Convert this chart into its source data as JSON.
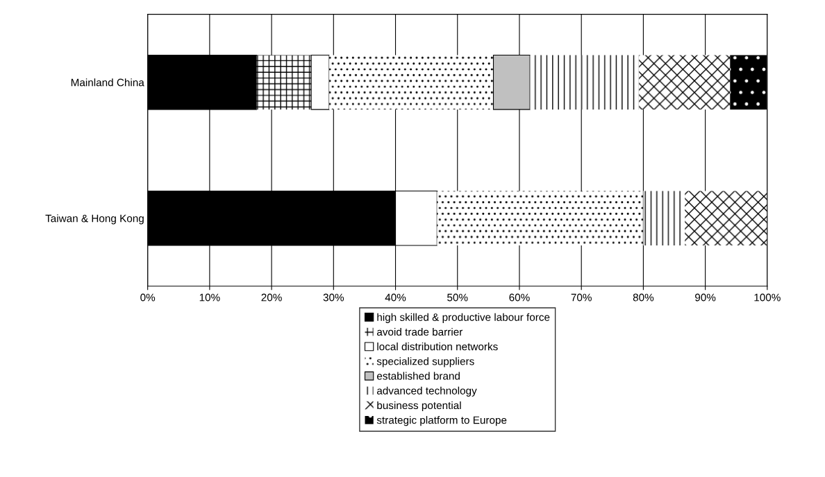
{
  "chart_data": {
    "type": "bar",
    "orientation": "horizontal",
    "stacked": true,
    "categories": [
      "Mainland China",
      "Taiwan & Hong Kong"
    ],
    "series": [
      {
        "name": "high skilled & productive labour force",
        "color": "#000000",
        "values": [
          17.6,
          40.0
        ]
      },
      {
        "name": "avoid trade barrier",
        "color": "#ffffff",
        "values": [
          8.8,
          0
        ]
      },
      {
        "name": "local distribution networks",
        "color": "#ffffff",
        "values": [
          2.9,
          6.7
        ]
      },
      {
        "name": "specialized suppliers",
        "color": "#ffffff",
        "values": [
          26.5,
          33.3
        ]
      },
      {
        "name": "established brand",
        "color": "#c0c0c0",
        "values": [
          5.9,
          0
        ]
      },
      {
        "name": "advanced technology",
        "color": "#ffffff",
        "values": [
          17.6,
          6.7
        ]
      },
      {
        "name": "business potential",
        "color": "#ffffff",
        "values": [
          14.7,
          13.3
        ]
      },
      {
        "name": "strategic platform to Europe",
        "color": "#000000",
        "values": [
          5.9,
          0
        ]
      }
    ],
    "xlim": [
      0,
      100
    ],
    "xticks": [
      {
        "value": 0,
        "label": "0%"
      },
      {
        "value": 10,
        "label": "10%"
      },
      {
        "value": 20,
        "label": "20%"
      },
      {
        "value": 30,
        "label": "30%"
      },
      {
        "value": 40,
        "label": "40%"
      },
      {
        "value": 50,
        "label": "50%"
      },
      {
        "value": 60,
        "label": "60%"
      },
      {
        "value": 70,
        "label": "70%"
      },
      {
        "value": 80,
        "label": "80%"
      },
      {
        "value": 90,
        "label": "90%"
      },
      {
        "value": 100,
        "label": "100%"
      }
    ],
    "grid": "x",
    "legend": "bottom"
  }
}
